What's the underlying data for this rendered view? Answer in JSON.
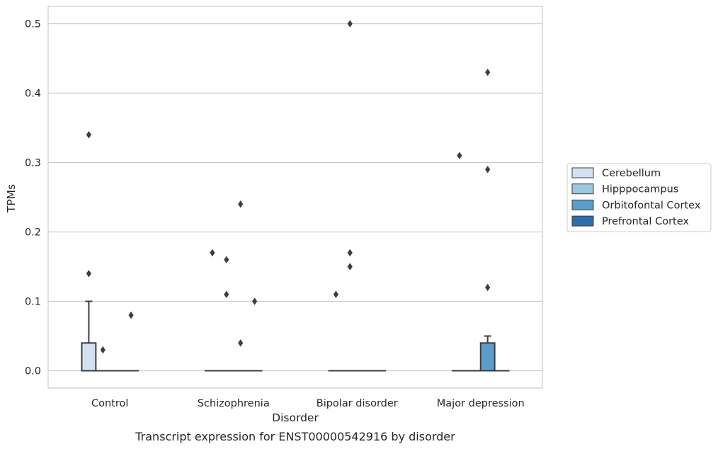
{
  "chart_data": {
    "type": "box",
    "xlabel": "Disorder",
    "ylabel": "TPMs",
    "caption": "Transcript expression for ENST00000542916 by disorder",
    "ylim": [
      -0.025,
      0.525
    ],
    "yticks": [
      0.0,
      0.1,
      0.2,
      0.3,
      0.4,
      0.5
    ],
    "ytick_labels": [
      "0.0",
      "0.1",
      "0.2",
      "0.3",
      "0.4",
      "0.5"
    ],
    "grid": "horizontal",
    "legend_position": "right, outside plot",
    "categories": [
      "Control",
      "Schizophrenia",
      "Bipolar disorder",
      "Major depression"
    ],
    "series": [
      {
        "name": "Cerebellum",
        "color": "#d2e2f1",
        "boxes": [
          {
            "category": "Control",
            "q1": 0.0,
            "median": 0.0,
            "q3": 0.04,
            "whisker_low": 0.0,
            "whisker_high": 0.1,
            "outliers": [
              0.14,
              0.34
            ]
          },
          {
            "category": "Schizophrenia",
            "q1": 0.0,
            "median": 0.0,
            "q3": 0.0,
            "whisker_low": 0.0,
            "whisker_high": 0.0,
            "outliers": [
              0.17
            ]
          },
          {
            "category": "Bipolar disorder",
            "q1": 0.0,
            "median": 0.0,
            "q3": 0.0,
            "whisker_low": 0.0,
            "whisker_high": 0.0,
            "outliers": [
              0.11
            ]
          },
          {
            "category": "Major depression",
            "q1": 0.0,
            "median": 0.0,
            "q3": 0.0,
            "whisker_low": 0.0,
            "whisker_high": 0.0,
            "outliers": [
              0.31
            ]
          }
        ]
      },
      {
        "name": "Hipppocampus",
        "color": "#9ac8e0",
        "boxes": [
          {
            "category": "Control",
            "q1": 0.0,
            "median": 0.0,
            "q3": 0.0,
            "whisker_low": 0.0,
            "whisker_high": 0.0,
            "outliers": [
              0.03
            ]
          },
          {
            "category": "Schizophrenia",
            "q1": 0.0,
            "median": 0.0,
            "q3": 0.0,
            "whisker_low": 0.0,
            "whisker_high": 0.0,
            "outliers": [
              0.11,
              0.16
            ]
          },
          {
            "category": "Bipolar disorder",
            "q1": 0.0,
            "median": 0.0,
            "q3": 0.0,
            "whisker_low": 0.0,
            "whisker_high": 0.0,
            "outliers": [
              0.15,
              0.17,
              0.5
            ]
          },
          {
            "category": "Major depression",
            "q1": 0.0,
            "median": 0.0,
            "q3": 0.0,
            "whisker_low": 0.0,
            "whisker_high": 0.0,
            "outliers": []
          }
        ]
      },
      {
        "name": "Orbitofontal Cortex",
        "color": "#5a9ec9",
        "boxes": [
          {
            "category": "Control",
            "q1": 0.0,
            "median": 0.0,
            "q3": 0.0,
            "whisker_low": 0.0,
            "whisker_high": 0.0,
            "outliers": []
          },
          {
            "category": "Schizophrenia",
            "q1": 0.0,
            "median": 0.0,
            "q3": 0.0,
            "whisker_low": 0.0,
            "whisker_high": 0.0,
            "outliers": [
              0.04,
              0.24
            ]
          },
          {
            "category": "Bipolar disorder",
            "q1": 0.0,
            "median": 0.0,
            "q3": 0.0,
            "whisker_low": 0.0,
            "whisker_high": 0.0,
            "outliers": []
          },
          {
            "category": "Major depression",
            "q1": 0.0,
            "median": 0.0,
            "q3": 0.04,
            "whisker_low": 0.0,
            "whisker_high": 0.05,
            "outliers": [
              0.12,
              0.29,
              0.43
            ]
          }
        ]
      },
      {
        "name": "Prefrontal Cortex",
        "color": "#2d6ea8",
        "boxes": [
          {
            "category": "Control",
            "q1": 0.0,
            "median": 0.0,
            "q3": 0.0,
            "whisker_low": 0.0,
            "whisker_high": 0.0,
            "outliers": [
              0.08
            ]
          },
          {
            "category": "Schizophrenia",
            "q1": 0.0,
            "median": 0.0,
            "q3": 0.0,
            "whisker_low": 0.0,
            "whisker_high": 0.0,
            "outliers": [
              0.1
            ]
          },
          {
            "category": "Bipolar disorder",
            "q1": 0.0,
            "median": 0.0,
            "q3": 0.0,
            "whisker_low": 0.0,
            "whisker_high": 0.0,
            "outliers": []
          },
          {
            "category": "Major depression",
            "q1": 0.0,
            "median": 0.0,
            "q3": 0.0,
            "whisker_low": 0.0,
            "whisker_high": 0.0,
            "outliers": []
          }
        ]
      }
    ]
  }
}
